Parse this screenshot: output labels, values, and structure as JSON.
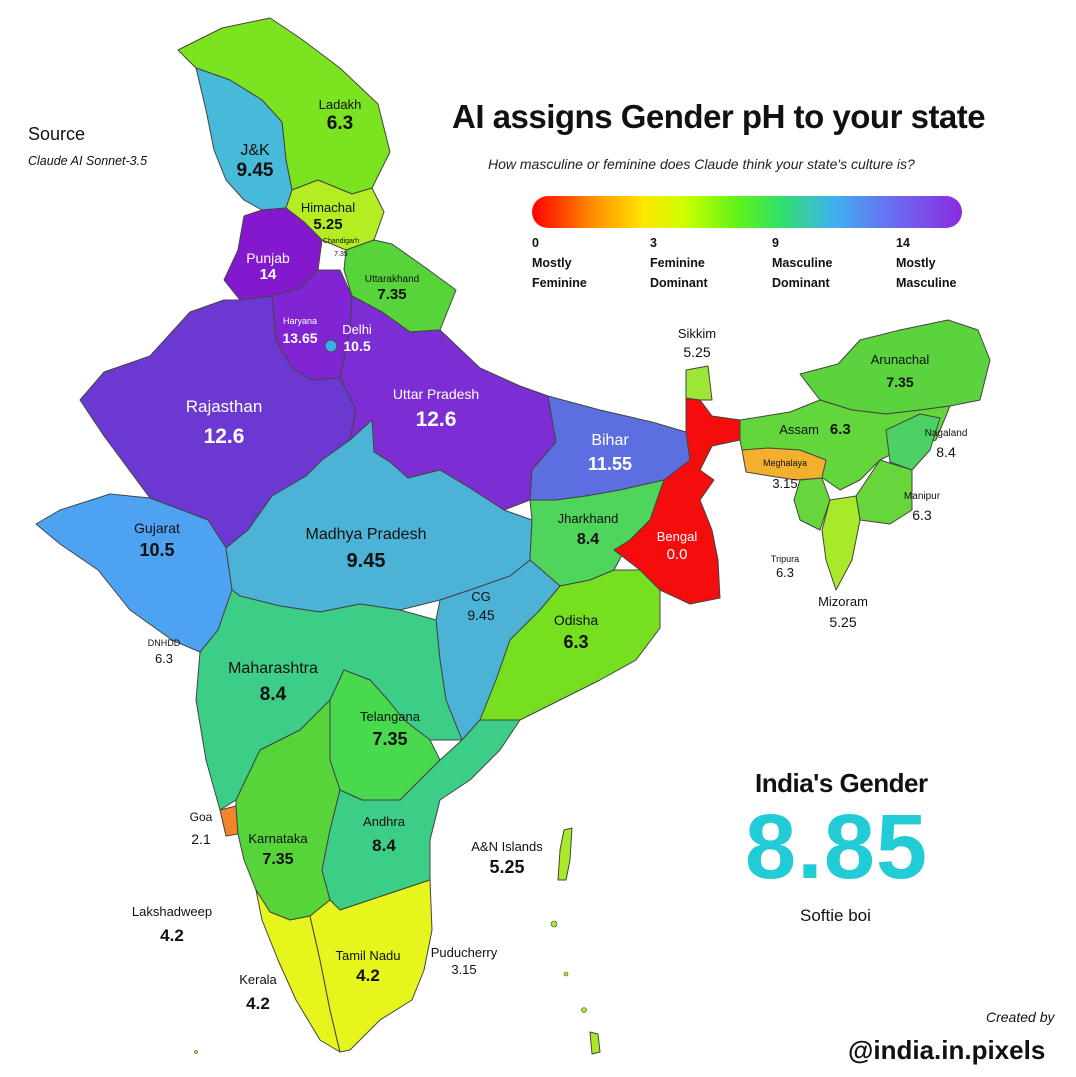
{
  "title": "AI assigns Gender pH to your state",
  "subtitle": "How masculine or feminine does Claude think your state's culture is?",
  "source": {
    "heading": "Source",
    "value": "Claude AI Sonnet-3.5"
  },
  "legend": {
    "stops": [
      {
        "value": "0",
        "line1": "Mostly",
        "line2": "Feminine"
      },
      {
        "value": "3",
        "line1": "Feminine",
        "line2": "Dominant"
      },
      {
        "value": "9",
        "line1": "Masculine",
        "line2": "Dominant"
      },
      {
        "value": "14",
        "line1": "Mostly",
        "line2": "Masculine"
      }
    ],
    "colors": [
      "#ff0000",
      "#ffe600",
      "#5ef21a",
      "#3fb2f0",
      "#8a2be2"
    ]
  },
  "summary": {
    "heading": "India's Gender",
    "value": "8.85",
    "note": "Softie boi",
    "color": "#22ccd6"
  },
  "credit": {
    "line1": "Created by",
    "line2": "@india.in.pixels"
  },
  "regions": [
    {
      "name": "Ladakh",
      "value": "6.3"
    },
    {
      "name": "J&K",
      "value": "9.45"
    },
    {
      "name": "Himachal",
      "value": "5.25"
    },
    {
      "name": "Chandigarh",
      "value": "7.35"
    },
    {
      "name": "Punjab",
      "value": "14"
    },
    {
      "name": "Uttarakhand",
      "value": "7.35"
    },
    {
      "name": "Haryana",
      "value": "13.65"
    },
    {
      "name": "Delhi",
      "value": "10.5"
    },
    {
      "name": "Rajasthan",
      "value": "12.6"
    },
    {
      "name": "Uttar Pradesh",
      "value": "12.6"
    },
    {
      "name": "Bihar",
      "value": "11.55"
    },
    {
      "name": "Sikkim",
      "value": "5.25"
    },
    {
      "name": "Arunachal",
      "value": "7.35"
    },
    {
      "name": "Assam",
      "value": "6.3"
    },
    {
      "name": "Nagaland",
      "value": "8.4"
    },
    {
      "name": "Meghalaya",
      "value": "3.15"
    },
    {
      "name": "Manipur",
      "value": "6.3"
    },
    {
      "name": "Tripura",
      "value": "6.3"
    },
    {
      "name": "Mizoram",
      "value": "5.25"
    },
    {
      "name": "Gujarat",
      "value": "10.5"
    },
    {
      "name": "Madhya Pradesh",
      "value": "9.45"
    },
    {
      "name": "Jharkhand",
      "value": "8.4"
    },
    {
      "name": "Bengal",
      "value": "0.0"
    },
    {
      "name": "DNHDD",
      "value": "6.3"
    },
    {
      "name": "CG",
      "value": "9.45"
    },
    {
      "name": "Odisha",
      "value": "6.3"
    },
    {
      "name": "Maharashtra",
      "value": "8.4"
    },
    {
      "name": "Telangana",
      "value": "7.35"
    },
    {
      "name": "Goa",
      "value": "2.1"
    },
    {
      "name": "Karnataka",
      "value": "7.35"
    },
    {
      "name": "Andhra",
      "value": "8.4"
    },
    {
      "name": "A&N Islands",
      "value": "5.25"
    },
    {
      "name": "Lakshadweep",
      "value": "4.2"
    },
    {
      "name": "Tamil Nadu",
      "value": "4.2"
    },
    {
      "name": "Puducherry",
      "value": "3.15"
    },
    {
      "name": "Kerala",
      "value": "4.2"
    }
  ]
}
